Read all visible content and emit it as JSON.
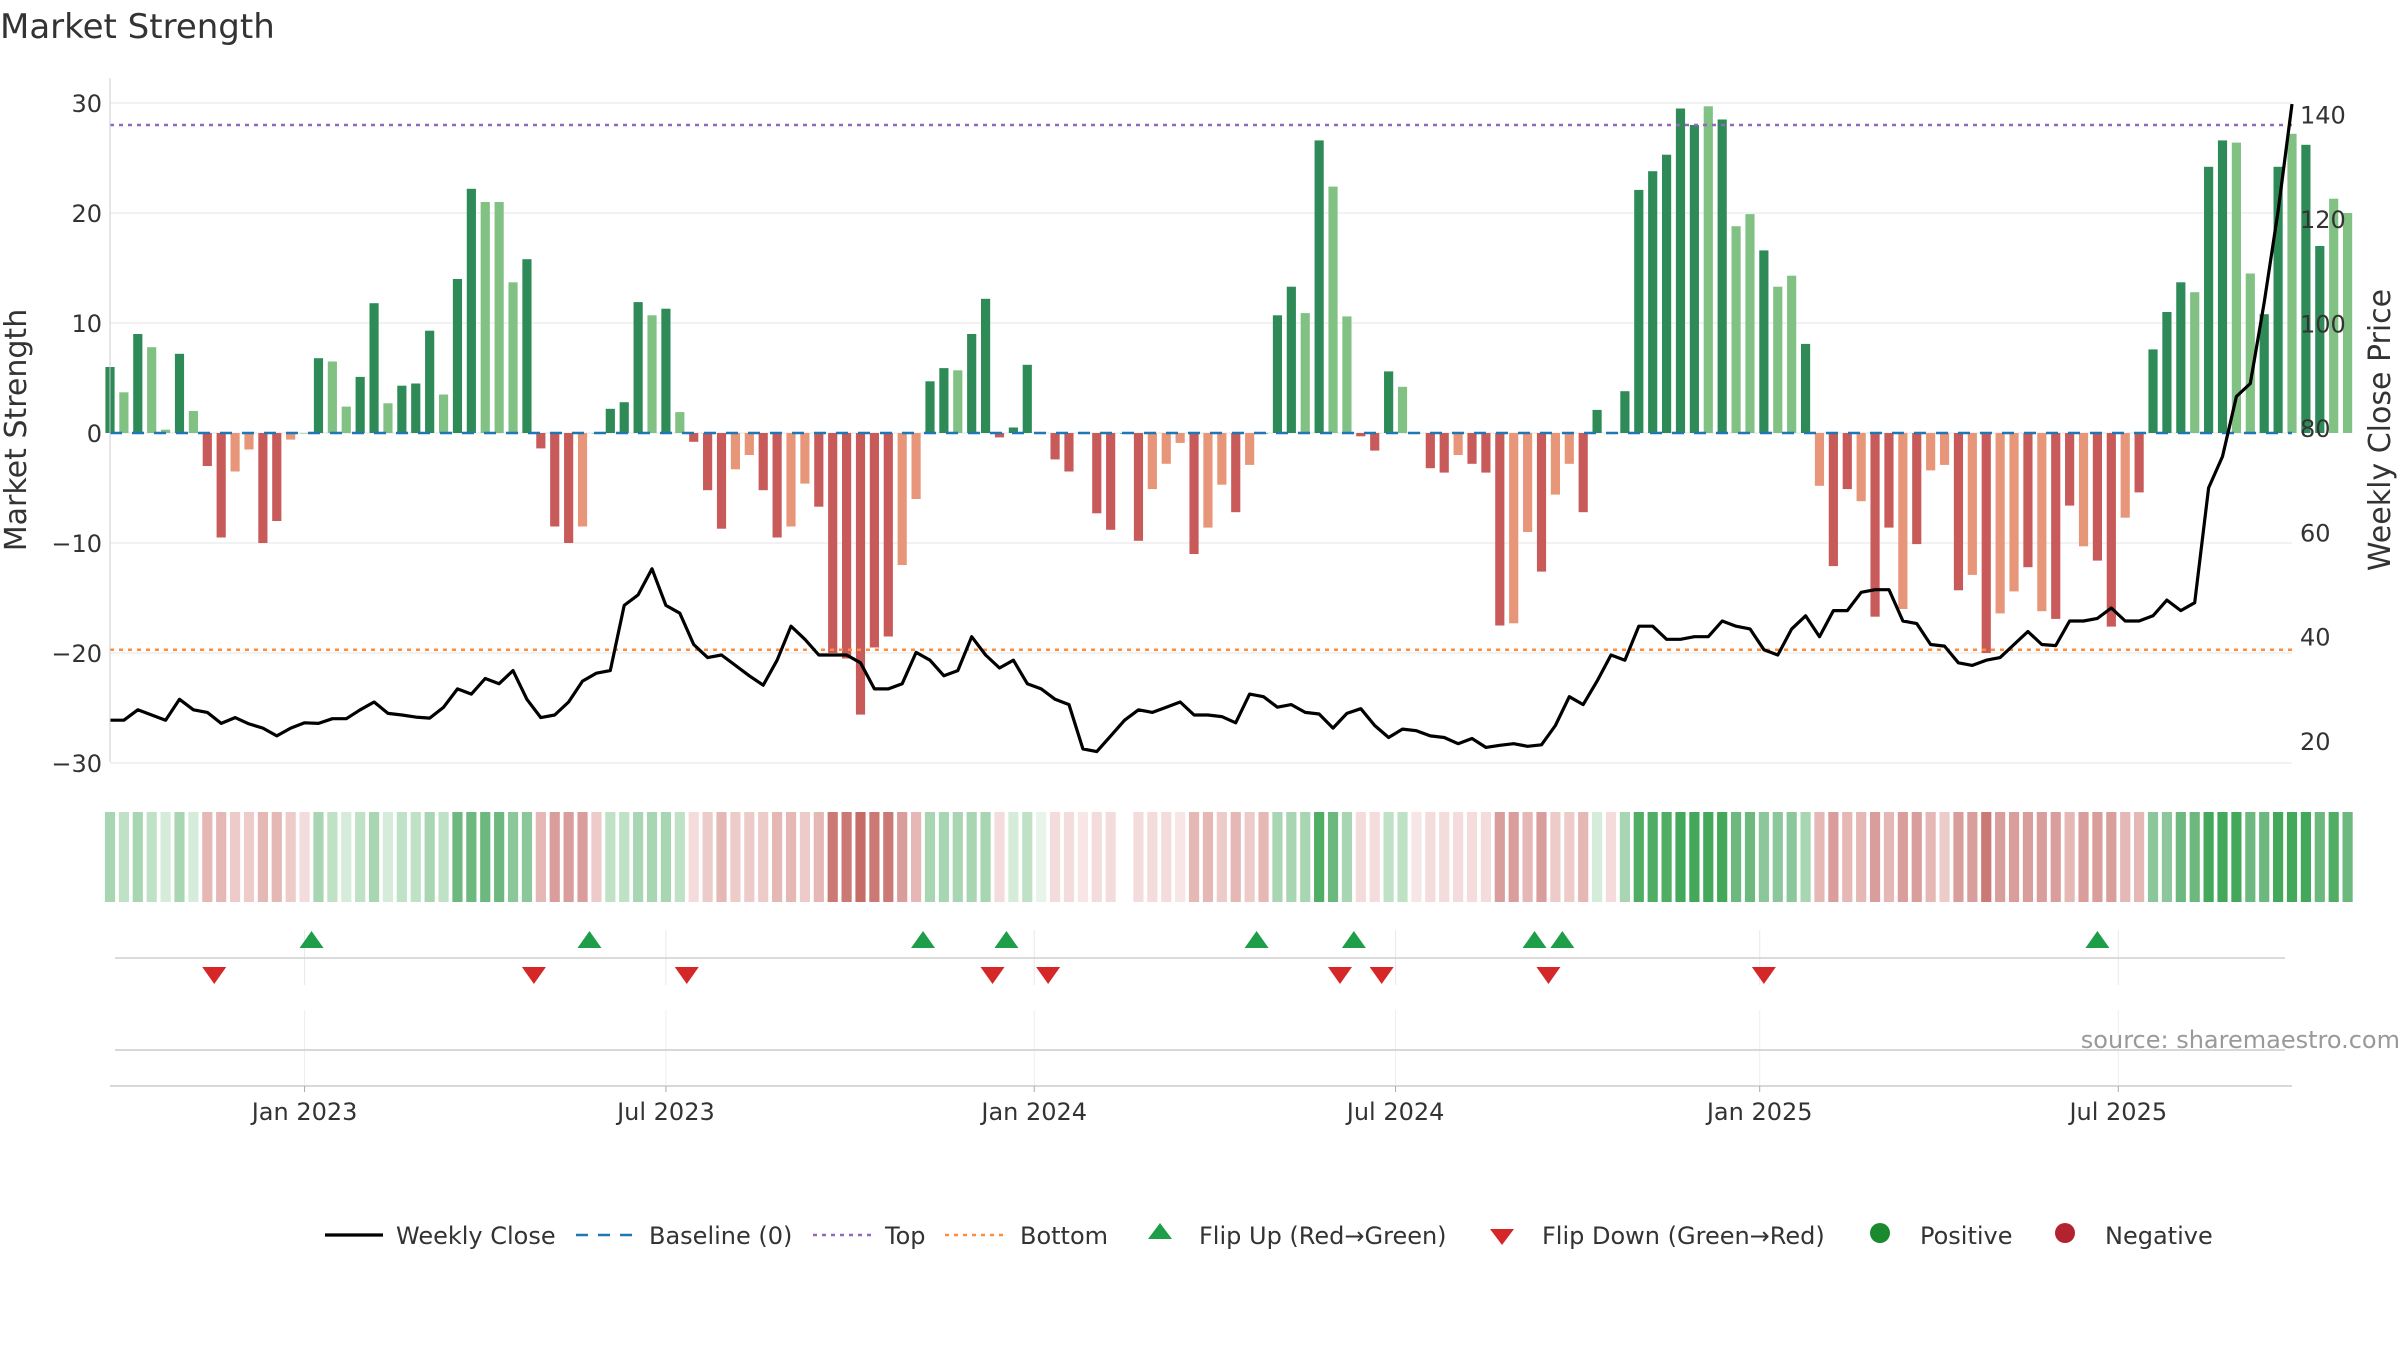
{
  "chart_data": {
    "type": "bar+line",
    "title": "Market Strength",
    "source": "source: sharemaestro.com",
    "ylabel": "Market Strength",
    "y2label": "Weekly Close Price",
    "ylim": [
      -33,
      33
    ],
    "y2lim": [
      16,
      147
    ],
    "yticks": [
      30,
      20,
      10,
      0,
      -10,
      -20,
      -30
    ],
    "ytick_labels": [
      "30",
      "20",
      "10",
      "0",
      "−10",
      "−20",
      "−30"
    ],
    "y2ticks": [
      140,
      120,
      100,
      80,
      60,
      40,
      20
    ],
    "y2tick_labels": [
      "140",
      "120",
      "100",
      "80",
      "60",
      "40",
      "20"
    ],
    "top_level": 28,
    "bottom_level": -19.7,
    "x_start_week": 0,
    "x_end_week": 157,
    "x_tick_weeks": [
      14,
      40,
      66.5,
      92.5,
      118.7,
      144.5
    ],
    "x_tick_labels": [
      "Jan 2023",
      "Jul 2023",
      "Jan 2024",
      "Jul 2024",
      "Jan 2025",
      "Jul 2025"
    ],
    "strength": [
      6,
      3.7,
      9,
      7.8,
      0.3,
      7.2,
      2,
      -3,
      -9.5,
      -3.5,
      -1.5,
      -10,
      -8,
      -0.6,
      0,
      6.8,
      6.5,
      2.4,
      5.1,
      11.8,
      2.7,
      4.3,
      4.5,
      9.3,
      3.5,
      14,
      22.2,
      21,
      21,
      13.7,
      15.8,
      -1.4,
      -8.5,
      -10,
      -8.5,
      0,
      2.2,
      2.8,
      11.9,
      10.7,
      11.3,
      1.9,
      -0.8,
      -5.2,
      -8.7,
      -3.3,
      -2,
      -5.2,
      -9.5,
      -8.5,
      -4.6,
      -6.7,
      -20,
      -20.5,
      -25.6,
      -19.5,
      -18.5,
      -12,
      -6,
      4.7,
      5.9,
      5.7,
      9,
      12.2,
      -0.4,
      0.5,
      6.2,
      0,
      -2.4,
      -3.5,
      0,
      -7.3,
      -8.8,
      0,
      -9.8,
      -5.1,
      -2.8,
      -0.9,
      -11,
      -8.6,
      -4.7,
      -7.2,
      -2.9,
      0,
      10.7,
      13.3,
      10.9,
      26.6,
      22.4,
      10.6,
      -0.3,
      -1.6,
      5.6,
      4.2,
      0,
      -3.2,
      -3.6,
      -2,
      -2.8,
      -3.6,
      -17.5,
      -17.3,
      -9,
      -12.6,
      -5.6,
      -2.8,
      -7.2,
      2.1,
      0,
      3.8,
      22.1,
      23.8,
      25.3,
      29.5,
      28,
      29.7,
      28.5,
      18.8,
      19.9,
      16.6,
      13.3,
      14.3,
      8.1,
      -4.8,
      -12.1,
      -5.1,
      -6.2,
      -16.7,
      -8.6,
      -16,
      -10.1,
      -3.4,
      -2.9,
      -14.3,
      -12.9,
      -20,
      -16.4,
      -14.4,
      -12.2,
      -16.2,
      -16.9,
      -6.6,
      -10.3,
      -11.6,
      -17.6,
      -7.7,
      -5.4,
      7.6,
      11,
      13.7,
      12.8,
      24.2,
      26.6,
      26.4,
      14.5,
      10.8,
      24.2,
      27.2,
      26.2,
      17,
      21.3,
      20
    ],
    "bar_shade": [
      "d",
      "l",
      "d",
      "l",
      "l",
      "d",
      "l",
      "d",
      "d",
      "l",
      "l",
      "d",
      "d",
      "l",
      "l",
      "d",
      "l",
      "l",
      "d",
      "d",
      "l",
      "d",
      "d",
      "d",
      "l",
      "d",
      "d",
      "l",
      "l",
      "l",
      "d",
      "d",
      "d",
      "d",
      "l",
      "l",
      "d",
      "d",
      "d",
      "l",
      "d",
      "l",
      "d",
      "d",
      "d",
      "l",
      "l",
      "d",
      "d",
      "l",
      "l",
      "d",
      "d",
      "d",
      "d",
      "d",
      "d",
      "l",
      "l",
      "d",
      "d",
      "l",
      "d",
      "d",
      "d",
      "d",
      "d",
      "d",
      "d",
      "d",
      "d",
      "d",
      "d",
      "d",
      "d",
      "l",
      "l",
      "l",
      "d",
      "l",
      "l",
      "d",
      "l",
      "d",
      "d",
      "d",
      "l",
      "d",
      "l",
      "l",
      "d",
      "d",
      "d",
      "l",
      "l",
      "d",
      "d",
      "l",
      "d",
      "d",
      "d",
      "l",
      "l",
      "d",
      "l",
      "l",
      "d",
      "d",
      "d",
      "d",
      "d",
      "d",
      "d",
      "d",
      "d",
      "l",
      "d",
      "l",
      "l",
      "d",
      "l",
      "l",
      "d",
      "l",
      "d",
      "d",
      "l",
      "d",
      "d",
      "l",
      "d",
      "l",
      "l",
      "d",
      "l",
      "d",
      "l",
      "l",
      "d",
      "l",
      "d",
      "d",
      "l",
      "d",
      "d",
      "l",
      "d",
      "d",
      "d",
      "d",
      "l",
      "d",
      "d",
      "l",
      "l",
      "d",
      "d",
      "l",
      "d",
      "d"
    ],
    "weekly_close": [
      24,
      24,
      26,
      25,
      24,
      28,
      26,
      25.5,
      23.4,
      24.5,
      23.3,
      22.5,
      21,
      22.5,
      23.5,
      23.4,
      24.3,
      24.3,
      26,
      27.5,
      25.3,
      25,
      24.6,
      24.4,
      26.5,
      30,
      29,
      32,
      31,
      33.5,
      28,
      24.5,
      25,
      27.5,
      31.5,
      33,
      33.5,
      46,
      48,
      53,
      46,
      44.5,
      38.5,
      36,
      36.5,
      34.5,
      32.5,
      30.7,
      35.5,
      42,
      39.5,
      36.5,
      36.5,
      36.5,
      35,
      30,
      30,
      31,
      37,
      35.5,
      32.5,
      33.5,
      40,
      36.5,
      34,
      35.5,
      31,
      30,
      28,
      27,
      18.5,
      18,
      21,
      24,
      26,
      25.5,
      26.5,
      27.5,
      25,
      25,
      24.7,
      23.5,
      29,
      28.5,
      26.5,
      27,
      25.5,
      25.2,
      22.5,
      25.3,
      26.2,
      23,
      20.7,
      22.3,
      22,
      21,
      20.7,
      19.5,
      20.5,
      18.8,
      19.2,
      19.5,
      19,
      19.3,
      23,
      28.5,
      27,
      31.5,
      36.5,
      35.5,
      42,
      42,
      39.5,
      39.5,
      40,
      40,
      43,
      42,
      41.5,
      37.5,
      36.5,
      41.5,
      44,
      40,
      45,
      45,
      48.5,
      49,
      49,
      43,
      42.5,
      38.5,
      38.2,
      35,
      34.5,
      35.5,
      36,
      38.5,
      41,
      38.5,
      38.3,
      43,
      43,
      43.5,
      45.5,
      43,
      43,
      44,
      47,
      45,
      46.5,
      68.5,
      74.5,
      86,
      88.5,
      104,
      121.5,
      142
    ]
  },
  "state_strip": {
    "colors": [
      "#a9d6b2",
      "#bfe2c6",
      "#a9d6b2",
      "#bfe2c6",
      "#d6ecda",
      "#a9d6b2",
      "#d6ecda",
      "#e5b7b5",
      "#e5b7b5",
      "#edcbc9",
      "#edcbc9",
      "#e5b7b5",
      "#e5b7b5",
      "#edcbc9",
      "#f3dcdb",
      "#a9d6b2",
      "#bfe2c6",
      "#d6ecda",
      "#bfe2c6",
      "#a9d6b2",
      "#d6ecda",
      "#bfe2c6",
      "#bfe2c6",
      "#a9d6b2",
      "#bfe2c6",
      "#6db87e",
      "#6db87e",
      "#6db87e",
      "#6db87e",
      "#8cc79b",
      "#8cc79b",
      "#e5b7b5",
      "#d99e9b",
      "#d99e9b",
      "#d99e9b",
      "#edcbc9",
      "#bfe2c6",
      "#bfe2c6",
      "#a9d6b2",
      "#a9d6b2",
      "#a9d6b2",
      "#bfe2c6",
      "#f3dcdb",
      "#edcbc9",
      "#e5b7b5",
      "#edcbc9",
      "#edcbc9",
      "#edcbc9",
      "#e5b7b5",
      "#e5b7b5",
      "#edcbc9",
      "#e5b7b5",
      "#cb7975",
      "#cb7975",
      "#c66c67",
      "#cb7975",
      "#cb7975",
      "#d99e9b",
      "#e5b7b5",
      "#a9d6b2",
      "#a9d6b2",
      "#a9d6b2",
      "#a9d6b2",
      "#a9d6b2",
      "#f3dcdb",
      "#d6ecda",
      "#bfe2c6",
      "#e8f4ea",
      "#f3dcdb",
      "#f3dcdb",
      "#f7e6e5",
      "#f3dcdb",
      "#f3dcdb",
      "#ffffff",
      "#f3dcdb",
      "#f3dcdb",
      "#f3dcdb",
      "#f7e6e5",
      "#e5b7b5",
      "#e5b7b5",
      "#edcbc9",
      "#e5b7b5",
      "#edcbc9",
      "#e5b7b5",
      "#a9d6b2",
      "#a9d6b2",
      "#a9d6b2",
      "#4fae64",
      "#6db87e",
      "#a9d6b2",
      "#f3dcdb",
      "#f3dcdb",
      "#bfe2c6",
      "#bfe2c6",
      "#f7e6e5",
      "#f3dcdb",
      "#f3dcdb",
      "#f3dcdb",
      "#f3dcdb",
      "#f3dcdb",
      "#d99e9b",
      "#d99e9b",
      "#e5b7b5",
      "#d99e9b",
      "#edcbc9",
      "#edcbc9",
      "#e5b7b5",
      "#d6ecda",
      "#f3dcdb",
      "#a9d6b2",
      "#4fae64",
      "#4fae64",
      "#4fae64",
      "#43a85a",
      "#43a85a",
      "#43a85a",
      "#43a85a",
      "#6db87e",
      "#6db87e",
      "#8cc79b",
      "#8cc79b",
      "#8cc79b",
      "#a9d6b2",
      "#e5b7b5",
      "#d99e9b",
      "#e5b7b5",
      "#e5b7b5",
      "#d99e9b",
      "#e5b7b5",
      "#d99e9b",
      "#d99e9b",
      "#e5b7b5",
      "#edcbc9",
      "#d99e9b",
      "#d99e9b",
      "#cb7975",
      "#d99e9b",
      "#d99e9b",
      "#d99e9b",
      "#d99e9b",
      "#d99e9b",
      "#e5b7b5",
      "#d99e9b",
      "#d99e9b",
      "#d99e9b",
      "#e5b7b5",
      "#e5b7b5",
      "#8cc79b",
      "#8cc79b",
      "#6db87e",
      "#6db87e",
      "#43a85a",
      "#43a85a",
      "#43a85a",
      "#6db87e",
      "#6db87e",
      "#43a85a",
      "#43a85a",
      "#43a85a",
      "#6db87e",
      "#4fae64",
      "#6db87e"
    ]
  },
  "flips": {
    "up_weeks": [
      14.5,
      34.5,
      58.5,
      64.5,
      82.5,
      89.5,
      102.5,
      104.5,
      143
    ],
    "down_weeks": [
      7.5,
      30.5,
      41.5,
      63.5,
      67.5,
      88.5,
      91.5,
      103.5,
      119
    ]
  },
  "legend": {
    "items": [
      {
        "key": "line",
        "label": "Weekly Close"
      },
      {
        "key": "baseline",
        "label": "Baseline (0)"
      },
      {
        "key": "top",
        "label": "Top"
      },
      {
        "key": "bottom",
        "label": "Bottom"
      },
      {
        "key": "flip-up",
        "label": "Flip Up (Red→Green)"
      },
      {
        "key": "flip-down",
        "label": "Flip Down (Green→Red)"
      },
      {
        "key": "positive",
        "label": "Positive"
      },
      {
        "key": "negative",
        "label": "Negative"
      }
    ]
  },
  "colors": {
    "pos_dark": "#2e8b57",
    "pos_light": "#82c184",
    "neg_dark": "#c85a5a",
    "neg_light": "#e8967a",
    "line": "#000000",
    "baseline": "#1f77b4",
    "top": "#9467bd",
    "bottom": "#ff8c3a",
    "flip_up": "#1f9e49",
    "flip_down": "#d62728",
    "positive": "#1a8a2e",
    "negative": "#b22230",
    "grid": "#e6e6e6",
    "axis": "#cccccc"
  }
}
